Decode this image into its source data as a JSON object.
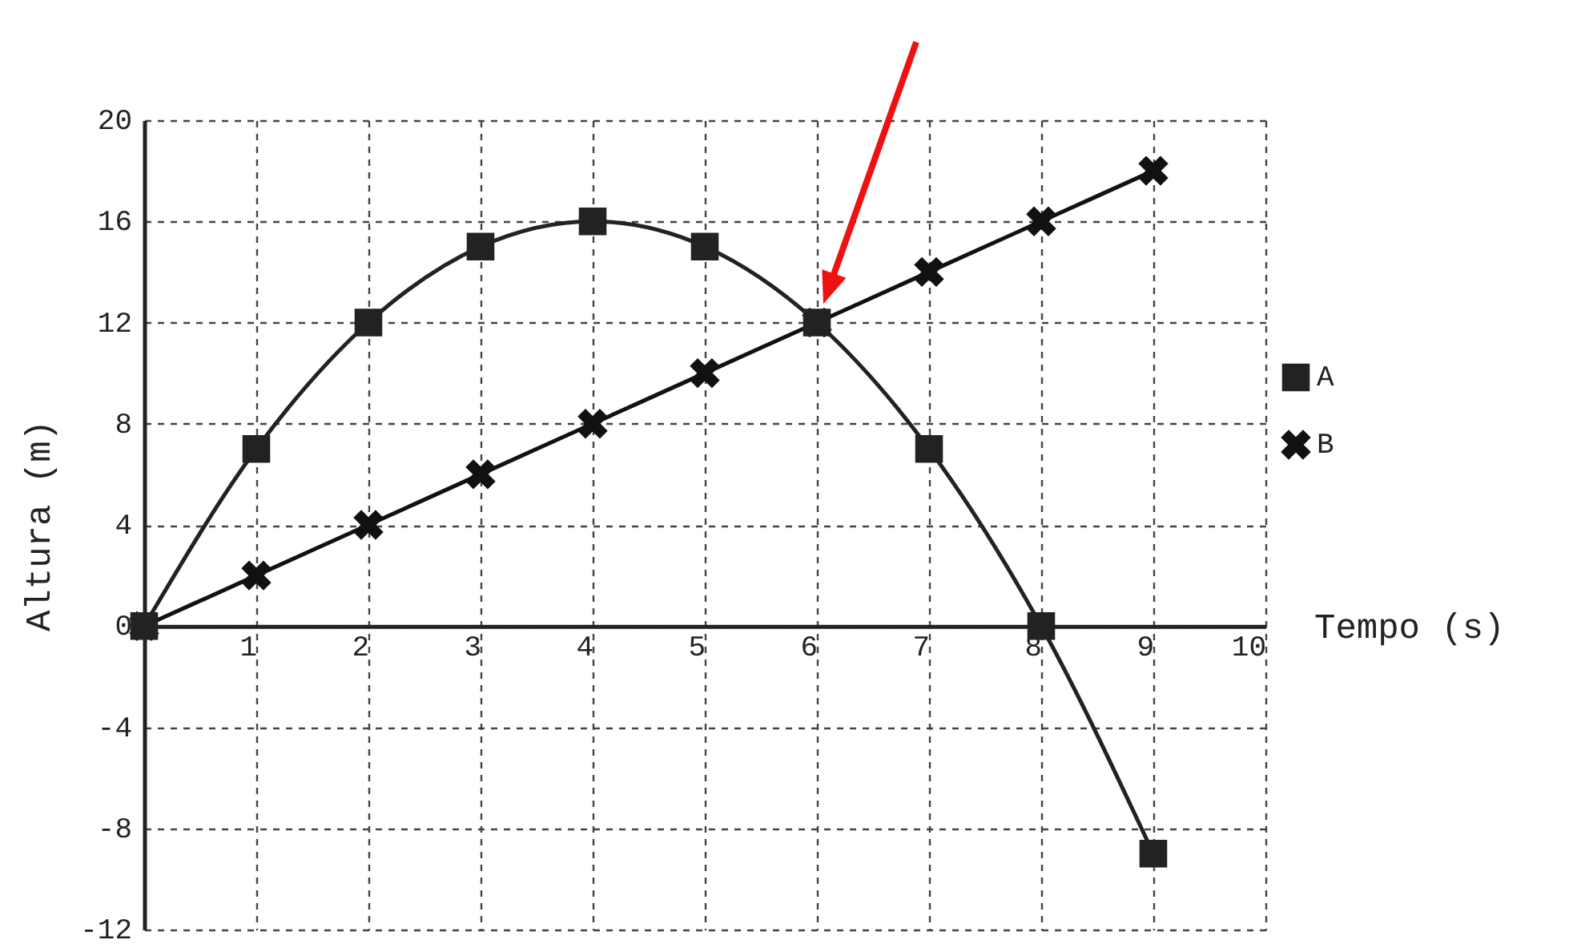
{
  "chart_data": {
    "type": "line",
    "xlabel": "Tempo (s)",
    "ylabel": "Altura (m)",
    "xlim": [
      0,
      10
    ],
    "ylim": [
      -12,
      20
    ],
    "xticks": [
      1,
      2,
      3,
      4,
      5,
      6,
      7,
      8,
      9,
      10
    ],
    "yticks": [
      -12,
      -8,
      -4,
      0,
      4,
      8,
      12,
      16,
      20
    ],
    "grid": true,
    "legend": "right",
    "line_style": "solid",
    "series": [
      {
        "name": "A",
        "color": "#222222",
        "marker": "square",
        "x": [
          0,
          1,
          2,
          3,
          4,
          5,
          6,
          7,
          8,
          9
        ],
        "values": [
          0,
          7,
          12,
          15,
          16,
          15,
          12,
          7,
          0,
          -9
        ]
      },
      {
        "name": "B",
        "color": "#111111",
        "marker": "cross",
        "x": [
          0,
          1,
          2,
          3,
          4,
          5,
          6,
          7,
          8,
          9
        ],
        "values": [
          0,
          2,
          4,
          6,
          8,
          10,
          12,
          14,
          16,
          18
        ]
      }
    ]
  }
}
